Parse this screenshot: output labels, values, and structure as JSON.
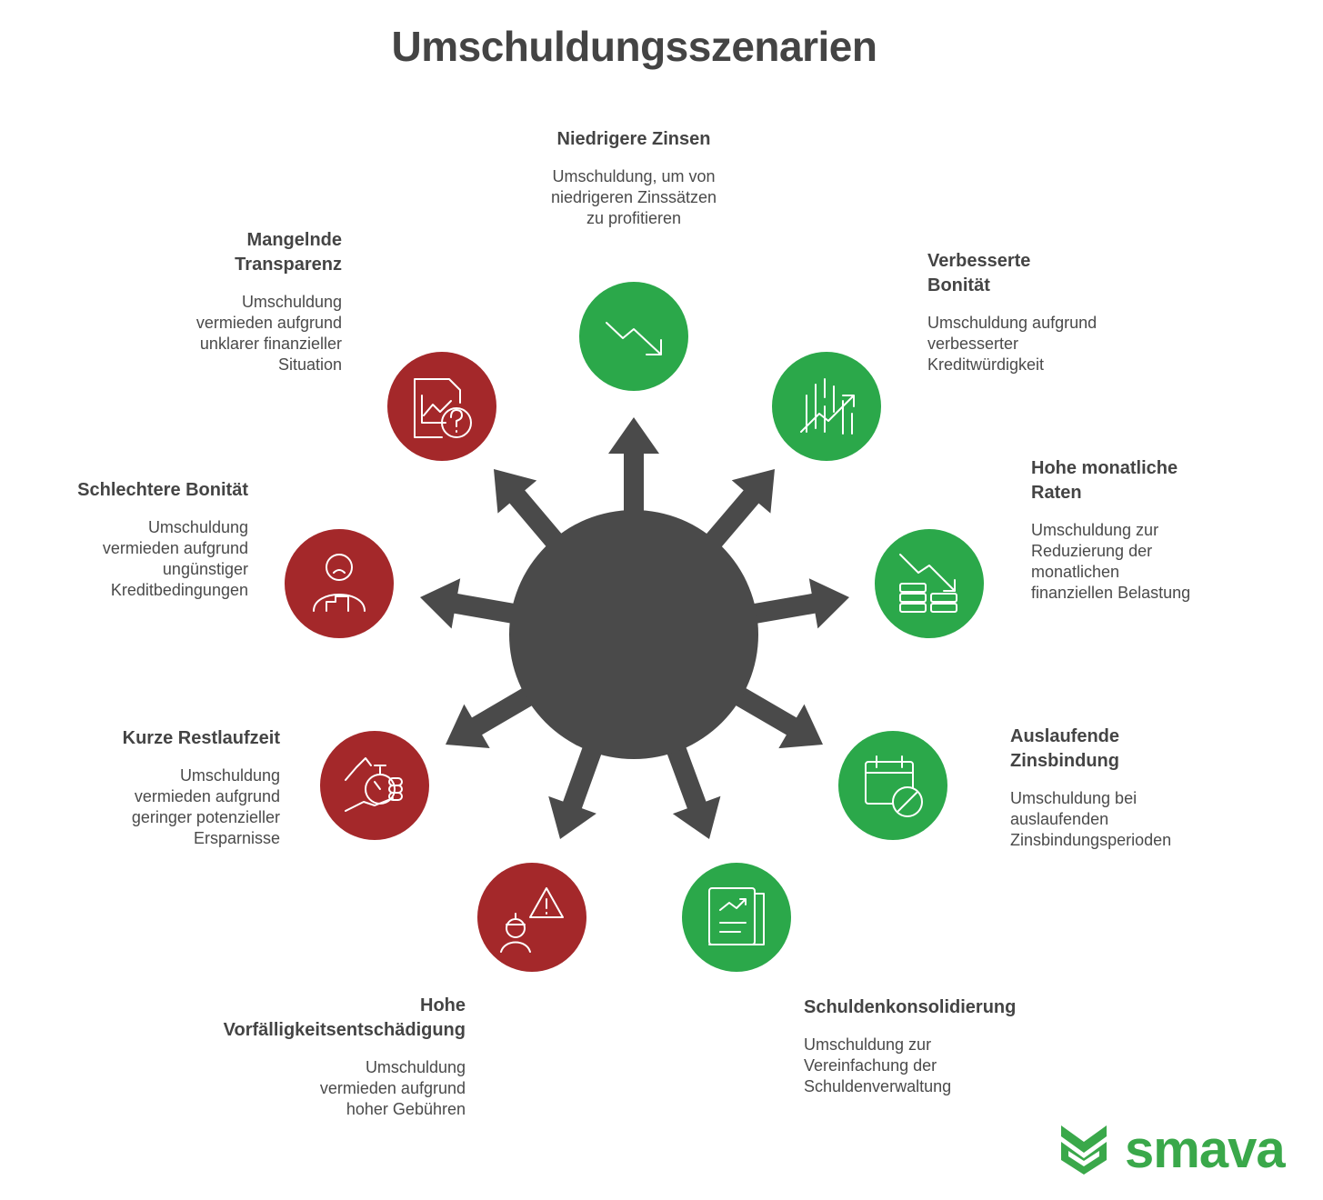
{
  "title": "Umschuldungsszenarien",
  "colors": {
    "positive": "#2ba84a",
    "negative": "#a4282a",
    "hub": "#4a4a4a",
    "brand": "#3aa84a"
  },
  "scenarios": [
    {
      "title": "Niedrigere Zinsen",
      "description": "Umschuldung, um von niedrigeren Zinssätzen zu profitieren",
      "type": "positive",
      "icon": "trend-down-icon"
    },
    {
      "title": "Verbesserte Bonität",
      "description": "Umschuldung aufgrund verbesserter Kreditwürdigkeit",
      "type": "positive",
      "icon": "chart-growth-icon"
    },
    {
      "title": "Hohe monatliche Raten",
      "description": "Umschuldung zur Reduzierung der monatlichen finanziellen Belastung",
      "type": "positive",
      "icon": "coins-down-icon"
    },
    {
      "title": "Auslaufende Zinsbindung",
      "description": "Umschuldung bei auslaufenden Zinsbindungsperioden",
      "type": "positive",
      "icon": "calendar-cancel-icon"
    },
    {
      "title": "Schuldenkonsolidierung",
      "description": "Umschuldung zur Vereinfachung der Schuldenverwaltung",
      "type": "positive",
      "icon": "report-icon"
    },
    {
      "title": "Hohe Vorfälligkeitsentschädigung",
      "description": "Umschuldung vermieden aufgrund hoher Gebühren",
      "type": "negative",
      "icon": "person-warning-icon"
    },
    {
      "title": "Kurze Restlaufzeit",
      "description": "Umschuldung vermieden aufgrund geringer potenzieller Ersparnisse",
      "type": "negative",
      "icon": "hand-clock-icon"
    },
    {
      "title": "Schlechtere Bonität",
      "description": "Umschuldung vermieden aufgrund ungünstiger Kreditbedingungen",
      "type": "negative",
      "icon": "sad-person-icon"
    },
    {
      "title": "Mangelnde Transparenz",
      "description": "Umschuldung vermieden aufgrund unklarer finanzieller Situation",
      "type": "negative",
      "icon": "document-question-icon"
    }
  ],
  "logo": {
    "text": "smava"
  }
}
